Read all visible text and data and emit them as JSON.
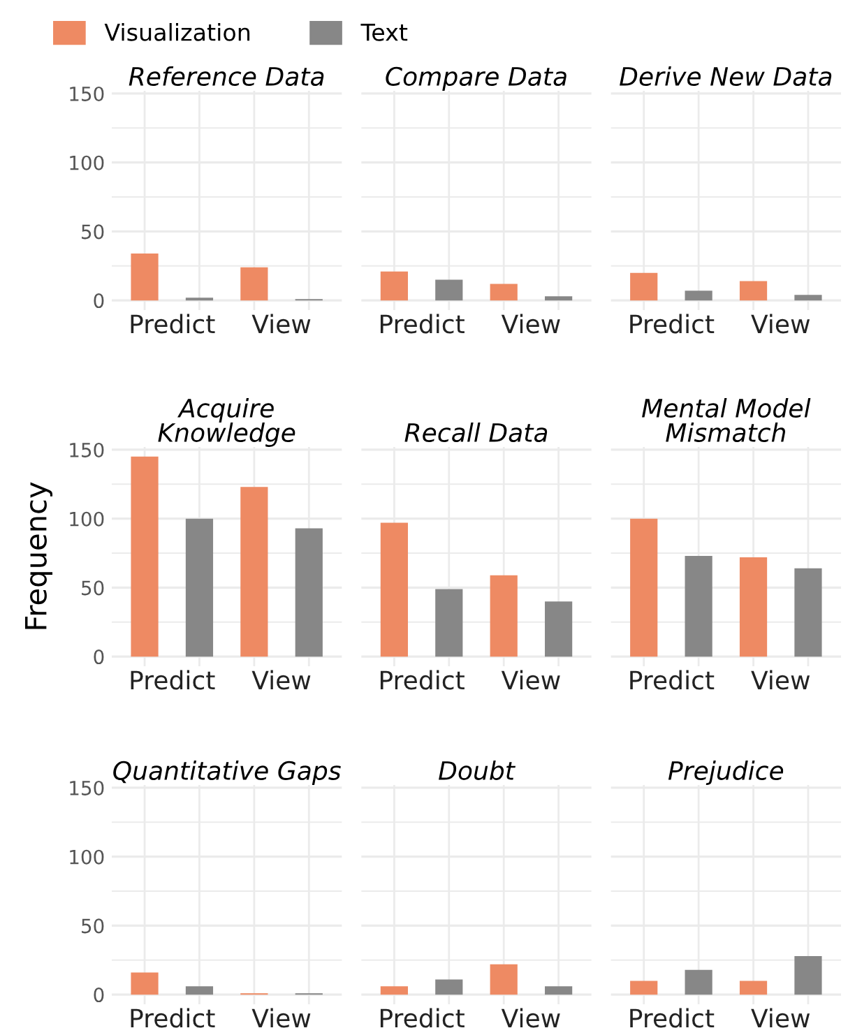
{
  "chart_data": [
    {
      "type": "bar",
      "title": "Reference Data",
      "categories": [
        "Predict",
        "View"
      ],
      "legend": "top",
      "ylim": [
        -7,
        152
      ],
      "yticks": [
        0,
        {
          "value": 25,
          "label": null
        },
        50,
        {
          "value": 75,
          "label": null
        },
        100,
        {
          "value": 125,
          "label": null
        },
        150
      ],
      "grid": true,
      "series": [
        {
          "name": "Visualization",
          "color": "#ee8a63",
          "values": [
            34,
            24
          ]
        },
        {
          "name": "Text",
          "color": "#878787",
          "values": [
            2,
            1
          ]
        }
      ]
    },
    {
      "type": "bar",
      "title": "Compare Data",
      "categories": [
        "Predict",
        "View"
      ],
      "tick_labels": "x",
      "ylim": [
        -7,
        152
      ],
      "yticks": [
        0,
        {
          "value": 25,
          "label": null
        },
        50,
        {
          "value": 75,
          "label": null
        },
        100,
        {
          "value": 125,
          "label": null
        },
        150
      ],
      "grid": true,
      "series": [
        {
          "color": "#ee8a63",
          "values": [
            21,
            12
          ]
        },
        {
          "color": "#878787",
          "values": [
            15,
            3
          ]
        }
      ]
    },
    {
      "type": "bar",
      "title": "Derive New Data",
      "categories": [
        "Predict",
        "View"
      ],
      "tick_labels": "x",
      "ylim": [
        -7,
        152
      ],
      "yticks": [
        0,
        {
          "value": 25,
          "label": null
        },
        50,
        {
          "value": 75,
          "label": null
        },
        100,
        {
          "value": 125,
          "label": null
        },
        150
      ],
      "grid": true,
      "series": [
        {
          "color": "#ee8a63",
          "values": [
            20,
            14
          ]
        },
        {
          "color": "#878787",
          "values": [
            7,
            4
          ]
        }
      ]
    },
    {
      "type": "bar",
      "title": "Acquire\nKnowledge",
      "ylabel": "Frequency",
      "categories": [
        "Predict",
        "View"
      ],
      "ylim": [
        -7,
        152
      ],
      "yticks": [
        0,
        {
          "value": 25,
          "label": null
        },
        50,
        {
          "value": 75,
          "label": null
        },
        100,
        {
          "value": 125,
          "label": null
        },
        150
      ],
      "grid": true,
      "series": [
        {
          "color": "#ee8a63",
          "values": [
            145,
            123
          ]
        },
        {
          "color": "#878787",
          "values": [
            100,
            93
          ]
        }
      ]
    },
    {
      "type": "bar",
      "title": "Recall Data",
      "categories": [
        "Predict",
        "View"
      ],
      "tick_labels": "x",
      "ylim": [
        -7,
        152
      ],
      "yticks": [
        0,
        {
          "value": 25,
          "label": null
        },
        50,
        {
          "value": 75,
          "label": null
        },
        100,
        {
          "value": 125,
          "label": null
        },
        150
      ],
      "grid": true,
      "series": [
        {
          "color": "#ee8a63",
          "values": [
            97,
            59
          ]
        },
        {
          "color": "#878787",
          "values": [
            49,
            40
          ]
        }
      ]
    },
    {
      "type": "bar",
      "title": "Mental Model\nMismatch",
      "categories": [
        "Predict",
        "View"
      ],
      "tick_labels": "x",
      "ylim": [
        -7,
        152
      ],
      "yticks": [
        0,
        {
          "value": 25,
          "label": null
        },
        50,
        {
          "value": 75,
          "label": null
        },
        100,
        {
          "value": 125,
          "label": null
        },
        150
      ],
      "grid": true,
      "series": [
        {
          "color": "#ee8a63",
          "values": [
            100,
            72
          ]
        },
        {
          "color": "#878787",
          "values": [
            73,
            64
          ]
        }
      ]
    },
    {
      "type": "bar",
      "title": "Quantitative Gaps",
      "categories": [
        "Predict",
        "View"
      ],
      "ylim": [
        -7,
        152
      ],
      "yticks": [
        0,
        {
          "value": 25,
          "label": null
        },
        50,
        {
          "value": 75,
          "label": null
        },
        100,
        {
          "value": 125,
          "label": null
        },
        150
      ],
      "grid": true,
      "series": [
        {
          "color": "#ee8a63",
          "values": [
            16,
            1
          ]
        },
        {
          "color": "#878787",
          "values": [
            6,
            1
          ]
        }
      ]
    },
    {
      "type": "bar",
      "title": "Doubt",
      "categories": [
        "Predict",
        "View"
      ],
      "tick_labels": "x",
      "ylim": [
        -7,
        152
      ],
      "yticks": [
        0,
        {
          "value": 25,
          "label": null
        },
        50,
        {
          "value": 75,
          "label": null
        },
        100,
        {
          "value": 125,
          "label": null
        },
        150
      ],
      "grid": true,
      "series": [
        {
          "color": "#ee8a63",
          "values": [
            6,
            22
          ]
        },
        {
          "color": "#878787",
          "values": [
            11,
            6
          ]
        }
      ]
    },
    {
      "type": "bar",
      "title": "Prejudice",
      "categories": [
        "Predict",
        "View"
      ],
      "tick_labels": "x",
      "ylim": [
        -7,
        152
      ],
      "yticks": [
        0,
        {
          "value": 25,
          "label": null
        },
        50,
        {
          "value": 75,
          "label": null
        },
        100,
        {
          "value": 125,
          "label": null
        },
        150
      ],
      "grid": true,
      "series": [
        {
          "color": "#ee8a63",
          "values": [
            10,
            10
          ]
        },
        {
          "color": "#878787",
          "values": [
            18,
            28
          ]
        }
      ]
    }
  ]
}
